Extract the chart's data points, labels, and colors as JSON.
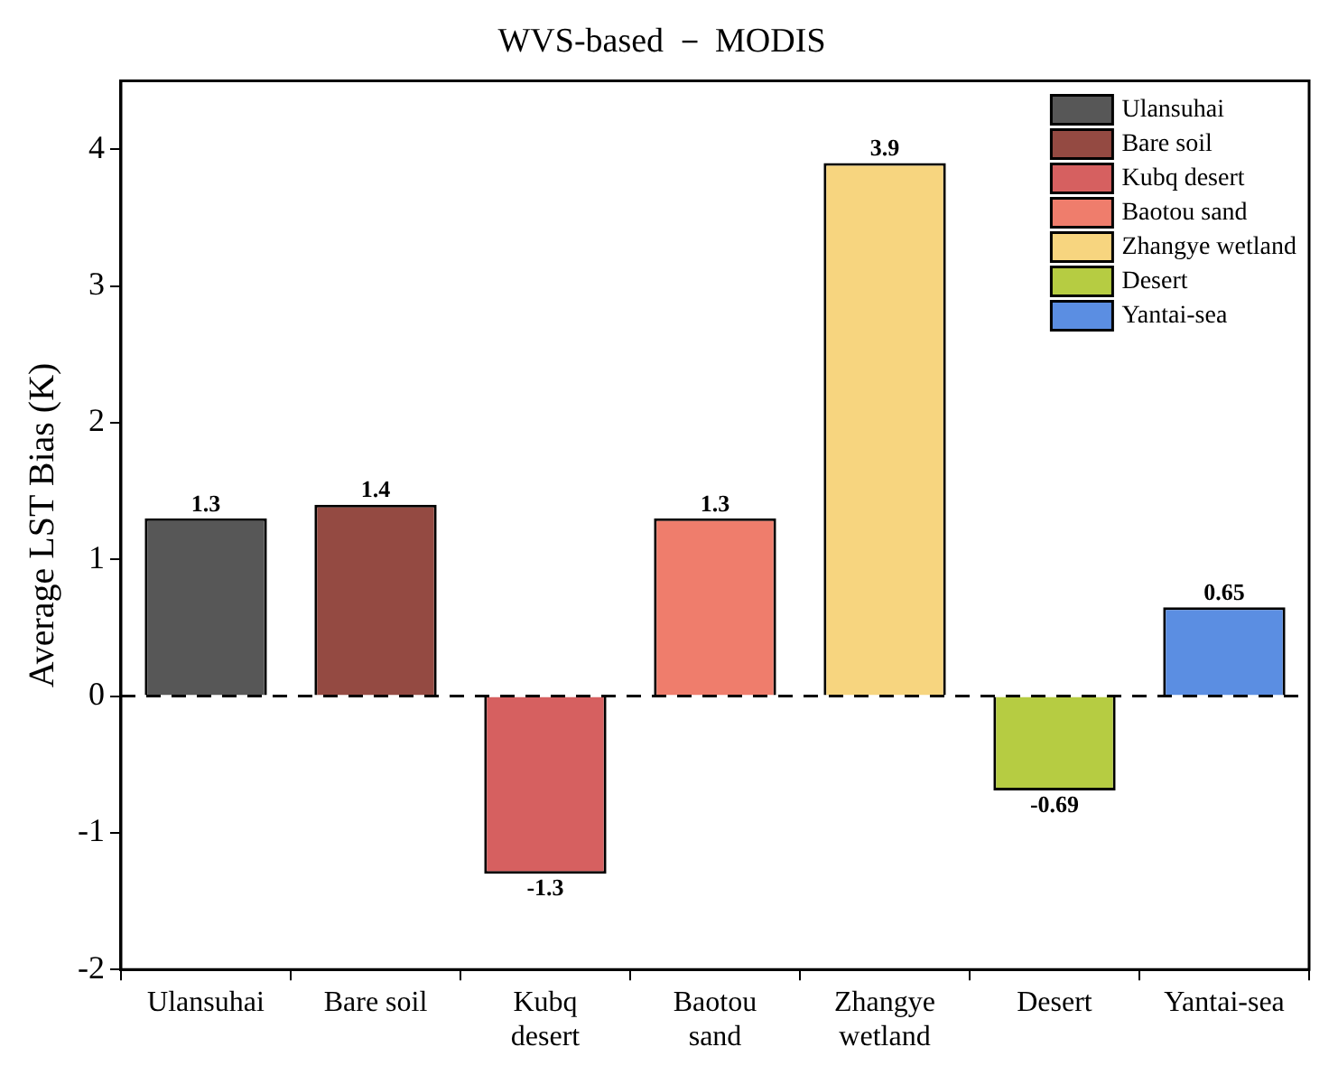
{
  "chart_data": {
    "type": "bar",
    "title": "WVS-based － MODIS",
    "ylabel": "Average LST Bias (K)",
    "categories": [
      "Ulansuhai",
      "Bare soil",
      "Kubq desert",
      "Baotou sand",
      "Zhangye wetland",
      "Desert",
      "Yantai-sea"
    ],
    "series": [
      {
        "name": "Ulansuhai",
        "color": "#575757",
        "values": [
          1.3,
          null,
          null,
          null,
          null,
          null,
          null
        ]
      },
      {
        "name": "Bare soil",
        "color": "#944a42",
        "values": [
          null,
          1.4,
          null,
          null,
          null,
          null,
          null
        ]
      },
      {
        "name": "Kubq desert",
        "color": "#d66060",
        "values": [
          null,
          null,
          -1.3,
          null,
          null,
          null,
          null
        ]
      },
      {
        "name": "Baotou sand",
        "color": "#ef7d6c",
        "values": [
          null,
          null,
          null,
          1.3,
          null,
          null,
          null
        ]
      },
      {
        "name": "Zhangye wetland",
        "color": "#f7d57f",
        "values": [
          null,
          null,
          null,
          null,
          3.9,
          null,
          null
        ]
      },
      {
        "name": "Desert",
        "color": "#b6cc42",
        "values": [
          null,
          null,
          null,
          null,
          null,
          -0.69,
          null
        ]
      },
      {
        "name": "Yantai-sea",
        "color": "#5b8ee2",
        "values": [
          null,
          null,
          null,
          null,
          null,
          null,
          0.65
        ]
      }
    ],
    "ylim": [
      -2,
      4.5
    ],
    "yticks": [
      -2,
      -1,
      0,
      1,
      2,
      3,
      4
    ],
    "ref_lines": [
      {
        "axis": "y",
        "value": 0,
        "line_style": "dashed"
      }
    ],
    "data_labels": true,
    "legend": "top right",
    "grid": false
  }
}
